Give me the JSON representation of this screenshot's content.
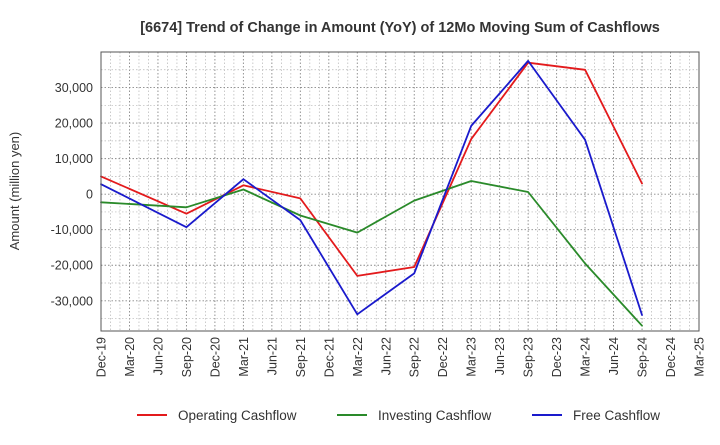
{
  "chart_data": {
    "type": "line",
    "title": "[6674]  Trend of Change in Amount (YoY) of 12Mo Moving Sum of Cashflows",
    "xlabel": "",
    "ylabel": "Amount (million yen)",
    "ylim": [
      -38500,
      40000
    ],
    "yticks": [
      -30000,
      -20000,
      -10000,
      0,
      10000,
      20000,
      30000
    ],
    "ytick_labels": [
      "-30,000",
      "-20,000",
      "-10,000",
      "0",
      "10,000",
      "20,000",
      "30,000"
    ],
    "categories": [
      "Dec-19",
      "Mar-20",
      "Jun-20",
      "Sep-20",
      "Dec-20",
      "Mar-21",
      "Jun-21",
      "Sep-21",
      "Dec-21",
      "Mar-22",
      "Jun-22",
      "Sep-22",
      "Dec-22",
      "Mar-23",
      "Jun-23",
      "Sep-23",
      "Dec-23",
      "Mar-24",
      "Jun-24",
      "Sep-24",
      "Dec-24",
      "Mar-25"
    ],
    "grid": true,
    "legend_position": "bottom",
    "series": [
      {
        "name": "Operating Cashflow",
        "color": "#e31a1c",
        "values": [
          5000,
          null,
          null,
          -5500,
          null,
          2500,
          null,
          -1200,
          null,
          -23000,
          null,
          -20500,
          null,
          15500,
          null,
          37000,
          null,
          35000,
          null,
          3000,
          null,
          null
        ]
      },
      {
        "name": "Investing Cashflow",
        "color": "#2a8a2a",
        "values": [
          -2300,
          null,
          null,
          -3700,
          null,
          1300,
          null,
          -6000,
          null,
          -10800,
          null,
          -1800,
          null,
          3700,
          null,
          600,
          null,
          -19500,
          null,
          -37000,
          null,
          null
        ]
      },
      {
        "name": "Free Cashflow",
        "color": "#1a1acc",
        "values": [
          2800,
          null,
          null,
          -9300,
          null,
          4200,
          null,
          -7300,
          null,
          -33800,
          null,
          -22300,
          null,
          19200,
          null,
          37500,
          null,
          15300,
          null,
          -34000,
          null,
          null
        ]
      }
    ]
  }
}
